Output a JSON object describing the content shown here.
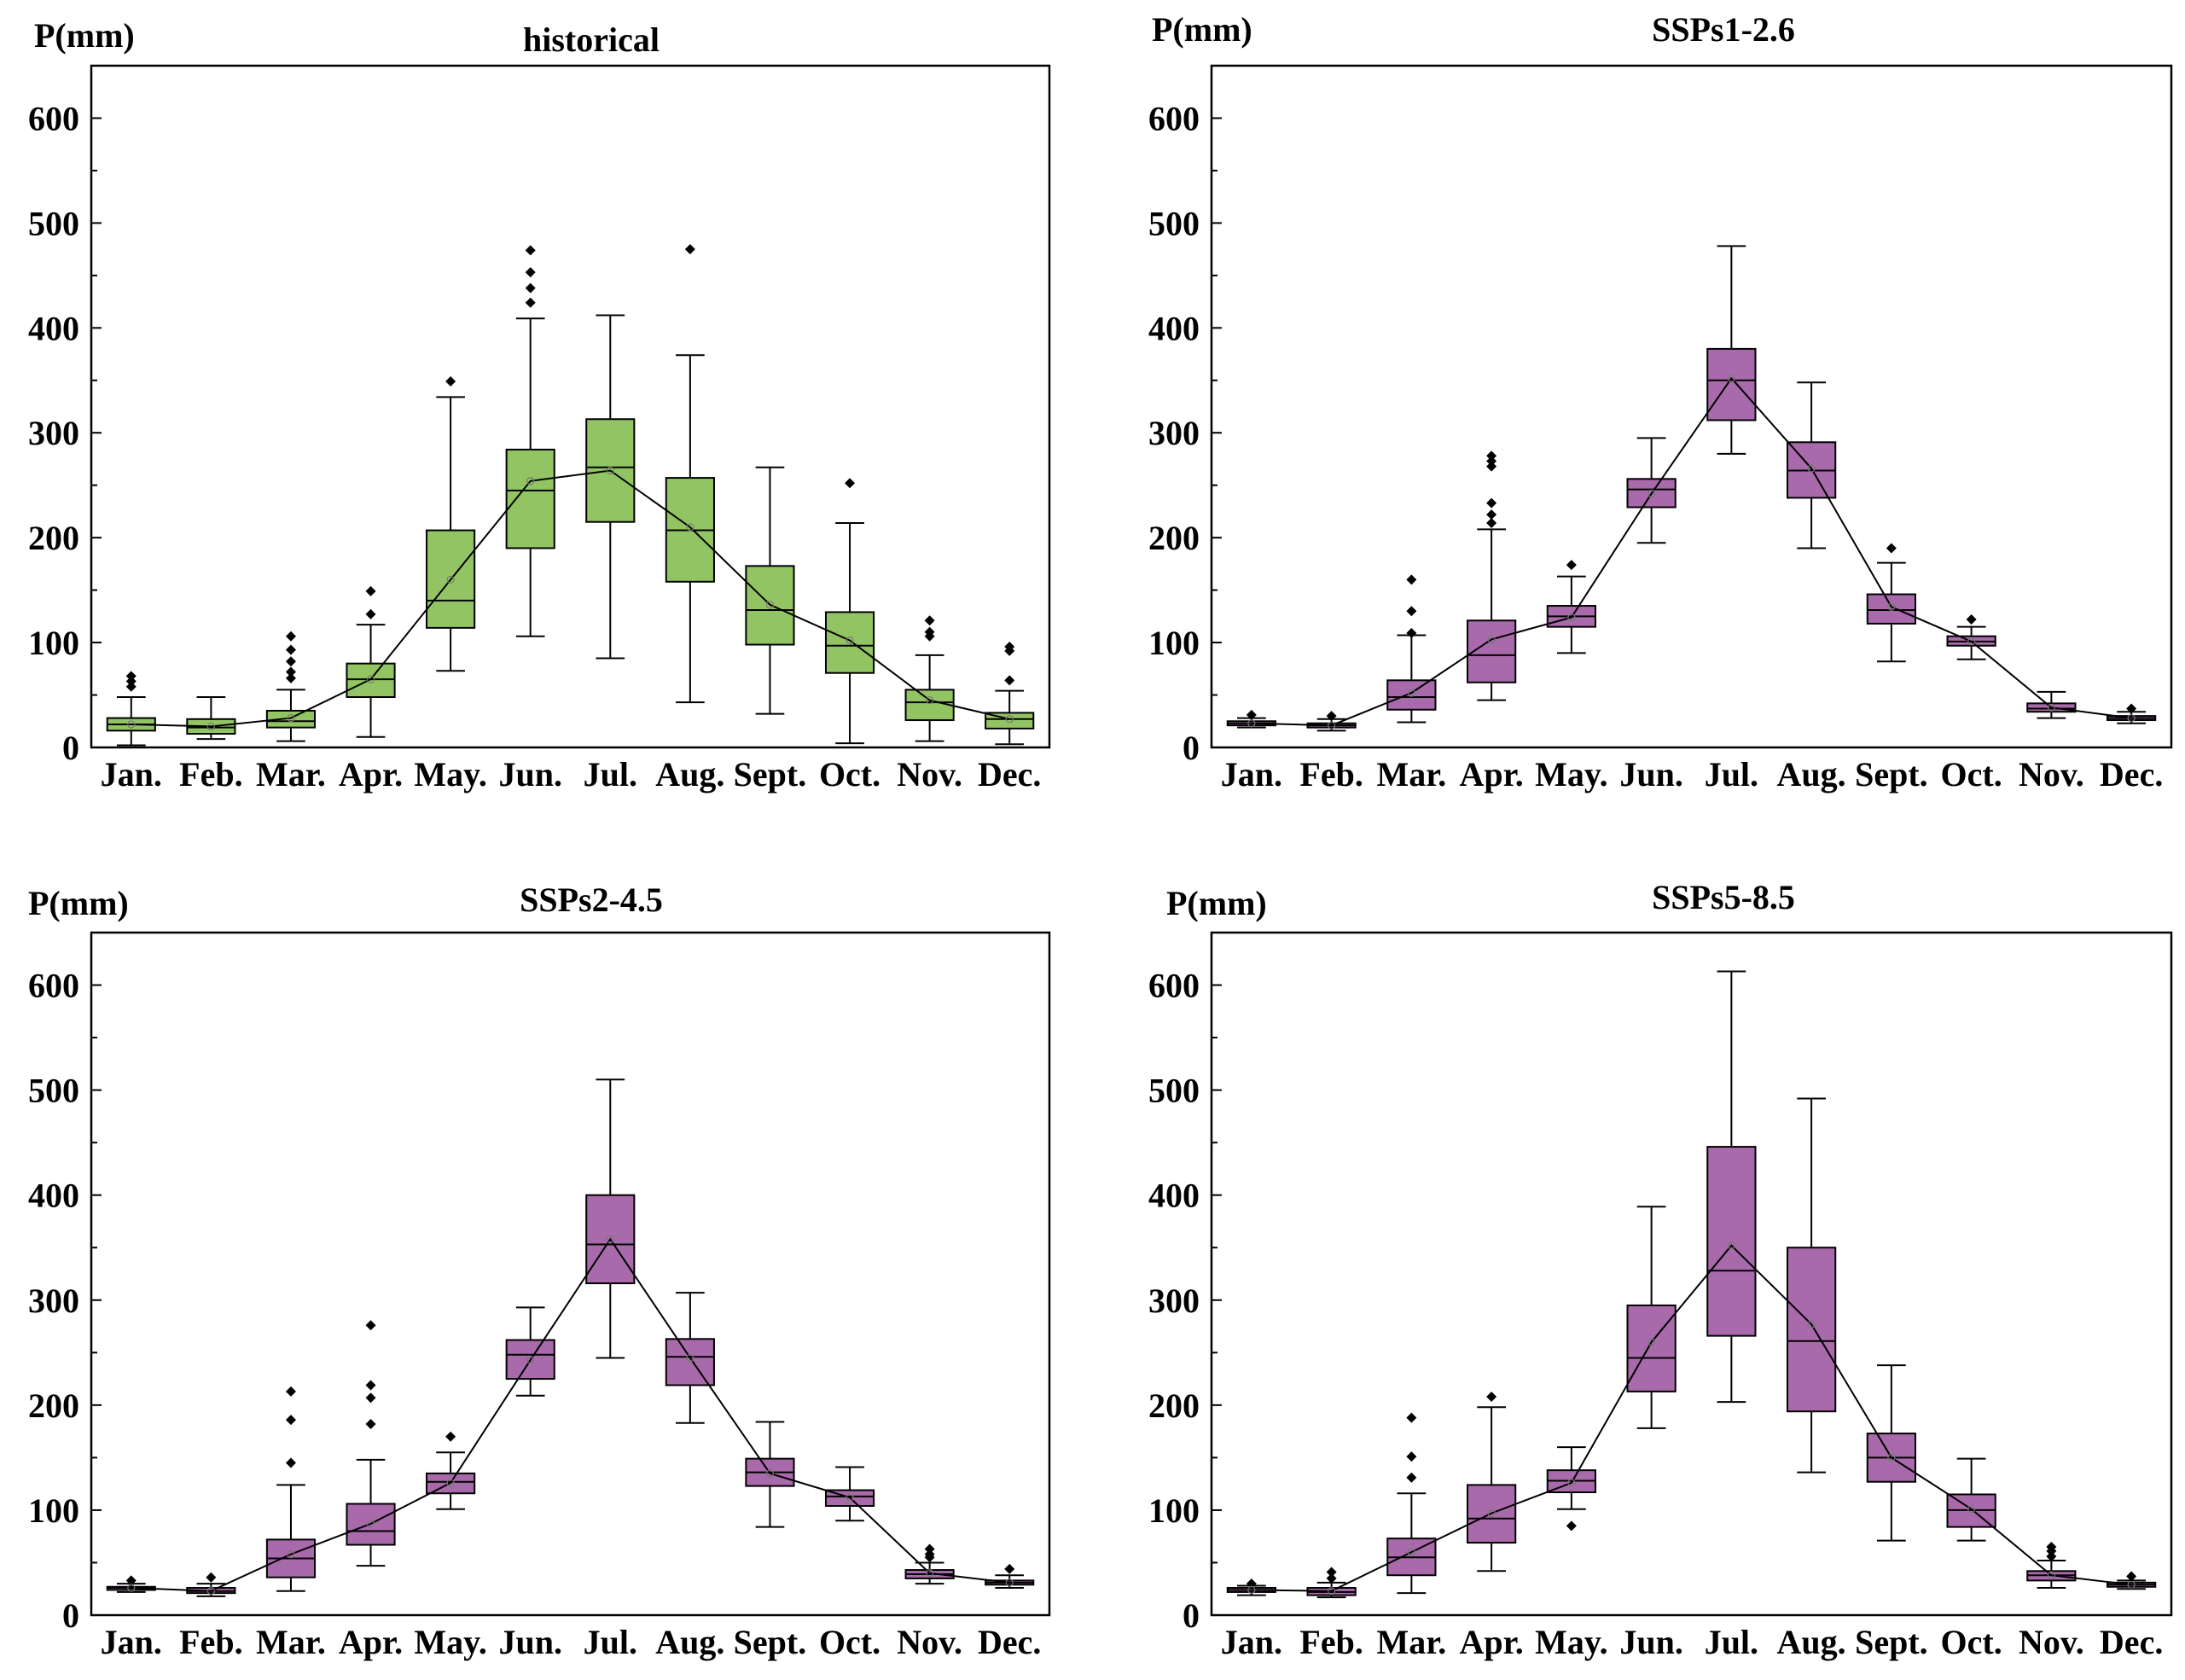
{
  "chart_data": [
    {
      "type": "box",
      "title": "historical",
      "ylabel": "P(mm)",
      "ylim": [
        0,
        650
      ],
      "yticks": [
        0,
        100,
        200,
        300,
        400,
        500,
        600
      ],
      "categories": [
        "Jan.",
        "Feb.",
        "Mar.",
        "Apr.",
        "May.",
        "Jun.",
        "Jul.",
        "Aug.",
        "Sept.",
        "Oct.",
        "Nov.",
        "Dec."
      ],
      "color": "#93c464",
      "boxes": [
        {
          "whisker_low": 2,
          "q1": 16,
          "median": 22,
          "q3": 28,
          "whisker_high": 48,
          "mean": 22,
          "outliers": [
            58,
            63,
            68
          ]
        },
        {
          "whisker_low": 8,
          "q1": 13,
          "median": 19,
          "q3": 27,
          "whisker_high": 48,
          "mean": 20,
          "outliers": []
        },
        {
          "whisker_low": 6,
          "q1": 19,
          "median": 25,
          "q3": 35,
          "whisker_high": 55,
          "mean": 28,
          "outliers": [
            66,
            72,
            82,
            93,
            106
          ]
        },
        {
          "whisker_low": 10,
          "q1": 48,
          "median": 65,
          "q3": 80,
          "whisker_high": 117,
          "mean": 65,
          "outliers": [
            127,
            149
          ]
        },
        {
          "whisker_low": 73,
          "q1": 114,
          "median": 140,
          "q3": 207,
          "whisker_high": 334,
          "mean": 160,
          "outliers": [
            349
          ]
        },
        {
          "whisker_low": 106,
          "q1": 190,
          "median": 245,
          "q3": 284,
          "whisker_high": 409,
          "mean": 254,
          "outliers": [
            424,
            438,
            453,
            474
          ]
        },
        {
          "whisker_low": 85,
          "q1": 215,
          "median": 267,
          "q3": 313,
          "whisker_high": 412,
          "mean": 264,
          "outliers": []
        },
        {
          "whisker_low": 43,
          "q1": 158,
          "median": 207,
          "q3": 257,
          "whisker_high": 374,
          "mean": 210,
          "outliers": [
            475
          ]
        },
        {
          "whisker_low": 32,
          "q1": 98,
          "median": 131,
          "q3": 173,
          "whisker_high": 267,
          "mean": 136,
          "outliers": []
        },
        {
          "whisker_low": 4,
          "q1": 71,
          "median": 97,
          "q3": 129,
          "whisker_high": 214,
          "mean": 102,
          "outliers": [
            252
          ]
        },
        {
          "whisker_low": 6,
          "q1": 26,
          "median": 43,
          "q3": 55,
          "whisker_high": 88,
          "mean": 45,
          "outliers": [
            106,
            110,
            121
          ]
        },
        {
          "whisker_low": 3,
          "q1": 18,
          "median": 27,
          "q3": 33,
          "whisker_high": 54,
          "mean": 27,
          "outliers": [
            64,
            92,
            96
          ]
        }
      ]
    },
    {
      "type": "box",
      "title": "SSPs1-2.6",
      "ylabel": "P(mm)",
      "ylim": [
        0,
        650
      ],
      "yticks": [
        0,
        100,
        200,
        300,
        400,
        500,
        600
      ],
      "categories": [
        "Jan.",
        "Feb.",
        "Mar.",
        "Apr.",
        "May.",
        "Jun.",
        "Jul.",
        "Aug.",
        "Sept.",
        "Oct.",
        "Nov.",
        "Dec."
      ],
      "color": "#a86aaa",
      "boxes": [
        {
          "whisker_low": 19,
          "q1": 21,
          "median": 23,
          "q3": 25,
          "whisker_high": 28,
          "mean": 23,
          "outliers": [
            31
          ]
        },
        {
          "whisker_low": 16,
          "q1": 19,
          "median": 21,
          "q3": 23,
          "whisker_high": 27,
          "mean": 21,
          "outliers": [
            30
          ]
        },
        {
          "whisker_low": 24,
          "q1": 36,
          "median": 48,
          "q3": 64,
          "whisker_high": 107,
          "mean": 52,
          "outliers": [
            109,
            130,
            160
          ]
        },
        {
          "whisker_low": 45,
          "q1": 62,
          "median": 88,
          "q3": 121,
          "whisker_high": 208,
          "mean": 103,
          "outliers": [
            214,
            222,
            233,
            268,
            273,
            278
          ]
        },
        {
          "whisker_low": 90,
          "q1": 115,
          "median": 125,
          "q3": 135,
          "whisker_high": 163,
          "mean": 124,
          "outliers": [
            174
          ]
        },
        {
          "whisker_low": 195,
          "q1": 229,
          "median": 246,
          "q3": 256,
          "whisker_high": 295,
          "mean": 242,
          "outliers": []
        },
        {
          "whisker_low": 280,
          "q1": 312,
          "median": 350,
          "q3": 380,
          "whisker_high": 478,
          "mean": 352,
          "outliers": []
        },
        {
          "whisker_low": 190,
          "q1": 238,
          "median": 264,
          "q3": 291,
          "whisker_high": 348,
          "mean": 266,
          "outliers": []
        },
        {
          "whisker_low": 82,
          "q1": 118,
          "median": 131,
          "q3": 146,
          "whisker_high": 176,
          "mean": 134,
          "outliers": [
            190
          ]
        },
        {
          "whisker_low": 84,
          "q1": 97,
          "median": 101,
          "q3": 106,
          "whisker_high": 115,
          "mean": 101,
          "outliers": [
            122
          ]
        },
        {
          "whisker_low": 28,
          "q1": 34,
          "median": 37,
          "q3": 42,
          "whisker_high": 53,
          "mean": 38,
          "outliers": []
        },
        {
          "whisker_low": 23,
          "q1": 26,
          "median": 28,
          "q3": 30,
          "whisker_high": 34,
          "mean": 28,
          "outliers": [
            37
          ]
        }
      ]
    },
    {
      "type": "box",
      "title": "SSPs2-4.5",
      "ylabel": "P(mm)",
      "ylim": [
        0,
        650
      ],
      "yticks": [
        0,
        100,
        200,
        300,
        400,
        500,
        600
      ],
      "categories": [
        "Jan.",
        "Feb.",
        "Mar.",
        "Apr.",
        "May.",
        "Jun.",
        "Jul.",
        "Aug.",
        "Sept.",
        "Oct.",
        "Nov.",
        "Dec."
      ],
      "color": "#a86aaa",
      "boxes": [
        {
          "whisker_low": 22,
          "q1": 24,
          "median": 26,
          "q3": 27,
          "whisker_high": 30,
          "mean": 26,
          "outliers": [
            33
          ]
        },
        {
          "whisker_low": 18,
          "q1": 21,
          "median": 23,
          "q3": 26,
          "whisker_high": 30,
          "mean": 23,
          "outliers": [
            36
          ]
        },
        {
          "whisker_low": 23,
          "q1": 36,
          "median": 54,
          "q3": 72,
          "whisker_high": 124,
          "mean": 58,
          "outliers": [
            145,
            186,
            213
          ]
        },
        {
          "whisker_low": 47,
          "q1": 67,
          "median": 80,
          "q3": 106,
          "whisker_high": 148,
          "mean": 87,
          "outliers": [
            182,
            207,
            219,
            276
          ]
        },
        {
          "whisker_low": 101,
          "q1": 116,
          "median": 127,
          "q3": 135,
          "whisker_high": 155,
          "mean": 126,
          "outliers": [
            170
          ]
        },
        {
          "whisker_low": 209,
          "q1": 225,
          "median": 248,
          "q3": 262,
          "whisker_high": 293,
          "mean": 243,
          "outliers": []
        },
        {
          "whisker_low": 245,
          "q1": 316,
          "median": 353,
          "q3": 400,
          "whisker_high": 510,
          "mean": 358,
          "outliers": []
        },
        {
          "whisker_low": 183,
          "q1": 219,
          "median": 246,
          "q3": 263,
          "whisker_high": 307,
          "mean": 245,
          "outliers": []
        },
        {
          "whisker_low": 84,
          "q1": 123,
          "median": 136,
          "q3": 149,
          "whisker_high": 184,
          "mean": 135,
          "outliers": []
        },
        {
          "whisker_low": 90,
          "q1": 104,
          "median": 113,
          "q3": 119,
          "whisker_high": 141,
          "mean": 112,
          "outliers": []
        },
        {
          "whisker_low": 30,
          "q1": 35,
          "median": 39,
          "q3": 43,
          "whisker_high": 50,
          "mean": 40,
          "outliers": [
            55,
            58,
            63
          ]
        },
        {
          "whisker_low": 26,
          "q1": 29,
          "median": 31,
          "q3": 33,
          "whisker_high": 38,
          "mean": 31,
          "outliers": [
            44
          ]
        }
      ]
    },
    {
      "type": "box",
      "title": "SSPs5-8.5",
      "ylabel": "P(mm)",
      "ylim": [
        0,
        650
      ],
      "yticks": [
        0,
        100,
        200,
        300,
        400,
        500,
        600
      ],
      "categories": [
        "Jan.",
        "Feb.",
        "Mar.",
        "Apr.",
        "May.",
        "Jun.",
        "Jul.",
        "Aug.",
        "Sept.",
        "Oct.",
        "Nov.",
        "Dec."
      ],
      "color": "#a86aaa",
      "boxes": [
        {
          "whisker_low": 19,
          "q1": 22,
          "median": 24,
          "q3": 26,
          "whisker_high": 28,
          "mean": 24,
          "outliers": [
            30
          ]
        },
        {
          "whisker_low": 17,
          "q1": 19,
          "median": 22,
          "q3": 26,
          "whisker_high": 31,
          "mean": 23,
          "outliers": [
            35,
            41
          ]
        },
        {
          "whisker_low": 21,
          "q1": 38,
          "median": 55,
          "q3": 73,
          "whisker_high": 116,
          "mean": 60,
          "outliers": [
            131,
            151,
            188
          ]
        },
        {
          "whisker_low": 42,
          "q1": 69,
          "median": 92,
          "q3": 124,
          "whisker_high": 198,
          "mean": 97,
          "outliers": [
            208
          ]
        },
        {
          "whisker_low": 101,
          "q1": 117,
          "median": 128,
          "q3": 138,
          "whisker_high": 160,
          "mean": 126,
          "outliers": [
            85
          ]
        },
        {
          "whisker_low": 178,
          "q1": 213,
          "median": 245,
          "q3": 295,
          "whisker_high": 389,
          "mean": 260,
          "outliers": []
        },
        {
          "whisker_low": 203,
          "q1": 266,
          "median": 328,
          "q3": 446,
          "whisker_high": 613,
          "mean": 352,
          "outliers": []
        },
        {
          "whisker_low": 136,
          "q1": 194,
          "median": 261,
          "q3": 350,
          "whisker_high": 492,
          "mean": 277,
          "outliers": []
        },
        {
          "whisker_low": 71,
          "q1": 127,
          "median": 150,
          "q3": 173,
          "whisker_high": 238,
          "mean": 150,
          "outliers": []
        },
        {
          "whisker_low": 71,
          "q1": 84,
          "median": 100,
          "q3": 115,
          "whisker_high": 149,
          "mean": 101,
          "outliers": []
        },
        {
          "whisker_low": 26,
          "q1": 33,
          "median": 38,
          "q3": 42,
          "whisker_high": 52,
          "mean": 38,
          "outliers": [
            56,
            61,
            65
          ]
        },
        {
          "whisker_low": 25,
          "q1": 27,
          "median": 29,
          "q3": 31,
          "whisker_high": 33,
          "mean": 29,
          "outliers": [
            37
          ]
        }
      ]
    }
  ]
}
